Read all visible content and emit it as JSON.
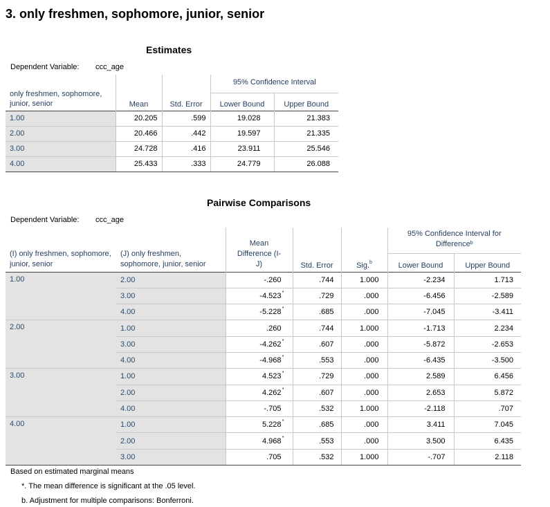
{
  "heading": "3. only freshmen, sophomore, junior, senior",
  "estimates": {
    "title": "Estimates",
    "dep_label": "Dependent Variable:",
    "dep_value": "ccc_age",
    "col_factor": "only freshmen, sophomore, junior, senior",
    "col_mean": "Mean",
    "col_se": "Std. Error",
    "ci_header": "95% Confidence Interval",
    "col_lower": "Lower Bound",
    "col_upper": "Upper Bound",
    "rows": [
      {
        "level": "1.00",
        "mean": "20.205",
        "se": ".599",
        "lower": "19.028",
        "upper": "21.383"
      },
      {
        "level": "2.00",
        "mean": "20.466",
        "se": ".442",
        "lower": "19.597",
        "upper": "21.335"
      },
      {
        "level": "3.00",
        "mean": "24.728",
        "se": ".416",
        "lower": "23.911",
        "upper": "25.546"
      },
      {
        "level": "4.00",
        "mean": "25.433",
        "se": ".333",
        "lower": "24.779",
        "upper": "26.088"
      }
    ]
  },
  "pairwise": {
    "title": "Pairwise Comparisons",
    "dep_label": "Dependent Variable:",
    "dep_value": "ccc_age",
    "col_i": "(I) only freshmen, sophomore, junior, senior",
    "col_j": "(J) only freshmen, sophomore, junior, senior",
    "col_md": "Mean Difference (I-J)",
    "col_se": "Std. Error",
    "col_sig": "Sig.",
    "sig_sup": "b",
    "ci_header": "95% Confidence Interval for Difference",
    "ci_sup": "b",
    "col_lower": "Lower Bound",
    "col_upper": "Upper Bound",
    "groups": [
      {
        "i": "1.00",
        "rows": [
          {
            "j": "2.00",
            "md": "-.260",
            "star": "",
            "se": ".744",
            "sig": "1.000",
            "lower": "-2.234",
            "upper": "1.713"
          },
          {
            "j": "3.00",
            "md": "-4.523",
            "star": "*",
            "se": ".729",
            "sig": ".000",
            "lower": "-6.456",
            "upper": "-2.589"
          },
          {
            "j": "4.00",
            "md": "-5.228",
            "star": "*",
            "se": ".685",
            "sig": ".000",
            "lower": "-7.045",
            "upper": "-3.411"
          }
        ]
      },
      {
        "i": "2.00",
        "rows": [
          {
            "j": "1.00",
            "md": ".260",
            "star": "",
            "se": ".744",
            "sig": "1.000",
            "lower": "-1.713",
            "upper": "2.234"
          },
          {
            "j": "3.00",
            "md": "-4.262",
            "star": "*",
            "se": ".607",
            "sig": ".000",
            "lower": "-5.872",
            "upper": "-2.653"
          },
          {
            "j": "4.00",
            "md": "-4.968",
            "star": "*",
            "se": ".553",
            "sig": ".000",
            "lower": "-6.435",
            "upper": "-3.500"
          }
        ]
      },
      {
        "i": "3.00",
        "rows": [
          {
            "j": "1.00",
            "md": "4.523",
            "star": "*",
            "se": ".729",
            "sig": ".000",
            "lower": "2.589",
            "upper": "6.456"
          },
          {
            "j": "2.00",
            "md": "4.262",
            "star": "*",
            "se": ".607",
            "sig": ".000",
            "lower": "2.653",
            "upper": "5.872"
          },
          {
            "j": "4.00",
            "md": "-.705",
            "star": "",
            "se": ".532",
            "sig": "1.000",
            "lower": "-2.118",
            "upper": ".707"
          }
        ]
      },
      {
        "i": "4.00",
        "rows": [
          {
            "j": "1.00",
            "md": "5.228",
            "star": "*",
            "se": ".685",
            "sig": ".000",
            "lower": "3.411",
            "upper": "7.045"
          },
          {
            "j": "2.00",
            "md": "4.968",
            "star": "*",
            "se": ".553",
            "sig": ".000",
            "lower": "3.500",
            "upper": "6.435"
          },
          {
            "j": "3.00",
            "md": ".705",
            "star": "",
            "se": ".532",
            "sig": "1.000",
            "lower": "-.707",
            "upper": "2.118"
          }
        ]
      }
    ],
    "footnotes": {
      "based": "Based on estimated marginal means",
      "star_note": "*. The mean difference is significant at the .05 level.",
      "b_note": "b. Adjustment for multiple comparisons: Bonferroni."
    }
  }
}
